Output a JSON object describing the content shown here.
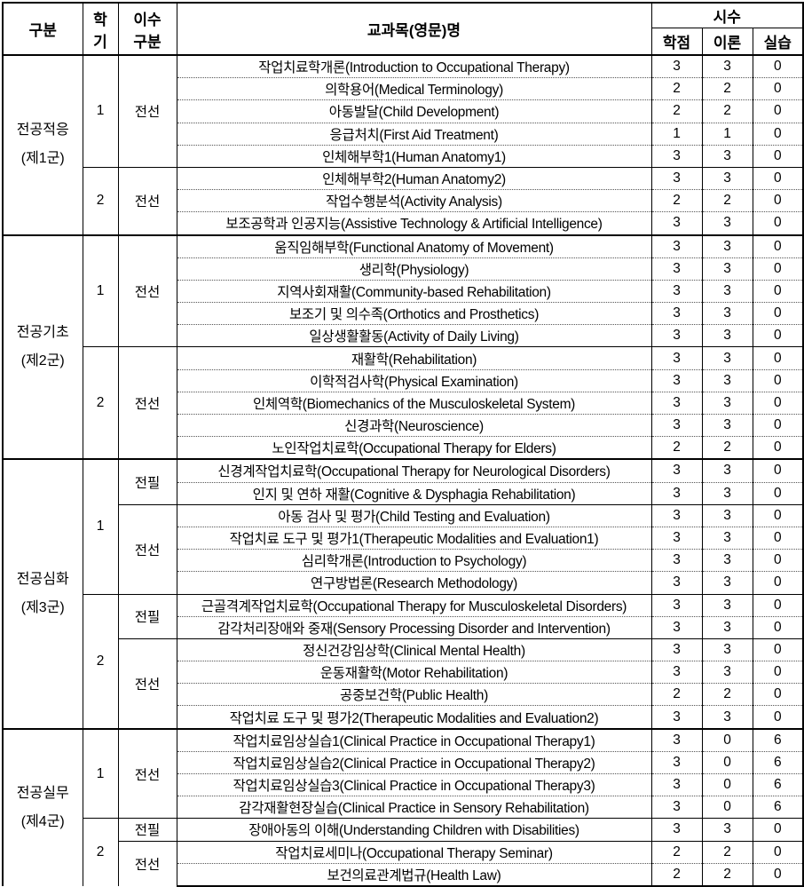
{
  "header": {
    "category": "구분",
    "semester": "학기",
    "type": "이수 구분",
    "type_line1": "이수",
    "type_line2": "구분",
    "semester_line1": "학",
    "semester_line2": "기",
    "course": "교과목(영문)명",
    "hours": "시수",
    "credit": "학점",
    "theory": "이론",
    "practice": "실습"
  },
  "groups": [
    {
      "name": "전공적응",
      "sub": "(제1군)",
      "semesters": [
        {
          "sem": "1",
          "types": [
            {
              "type": "전선",
              "courses": [
                {
                  "name": "작업치료학개론(Introduction to Occupational Therapy)",
                  "credit": "3",
                  "theory": "3",
                  "practice": "0"
                },
                {
                  "name": "의학용어(Medical Terminology)",
                  "credit": "2",
                  "theory": "2",
                  "practice": "0"
                },
                {
                  "name": "아동발달(Child Development)",
                  "credit": "2",
                  "theory": "2",
                  "practice": "0"
                },
                {
                  "name": "응급처치(First Aid Treatment)",
                  "credit": "1",
                  "theory": "1",
                  "practice": "0"
                },
                {
                  "name": "인체해부학1(Human Anatomy1)",
                  "credit": "3",
                  "theory": "3",
                  "practice": "0"
                }
              ]
            }
          ]
        },
        {
          "sem": "2",
          "types": [
            {
              "type": "전선",
              "courses": [
                {
                  "name": "인체해부학2(Human Anatomy2)",
                  "credit": "3",
                  "theory": "3",
                  "practice": "0"
                },
                {
                  "name": "작업수행분석(Activity Analysis)",
                  "credit": "2",
                  "theory": "2",
                  "practice": "0"
                },
                {
                  "name": "보조공학과 인공지능(Assistive Technology & Artificial Intelligence)",
                  "credit": "3",
                  "theory": "3",
                  "practice": "0"
                }
              ]
            }
          ]
        }
      ]
    },
    {
      "name": "전공기초",
      "sub": "(제2군)",
      "semesters": [
        {
          "sem": "1",
          "types": [
            {
              "type": "전선",
              "courses": [
                {
                  "name": "움직임해부학(Functional Anatomy of Movement)",
                  "credit": "3",
                  "theory": "3",
                  "practice": "0"
                },
                {
                  "name": "생리학(Physiology)",
                  "credit": "3",
                  "theory": "3",
                  "practice": "0"
                },
                {
                  "name": "지역사회재활(Community-based Rehabilitation)",
                  "credit": "3",
                  "theory": "3",
                  "practice": "0"
                },
                {
                  "name": "보조기 및 의수족(Orthotics and Prosthetics)",
                  "credit": "3",
                  "theory": "3",
                  "practice": "0"
                },
                {
                  "name": "일상생활활동(Activity of  Daily Living)",
                  "credit": "3",
                  "theory": "3",
                  "practice": "0"
                }
              ]
            }
          ]
        },
        {
          "sem": "2",
          "types": [
            {
              "type": "전선",
              "courses": [
                {
                  "name": "재활학(Rehabilitation)",
                  "credit": "3",
                  "theory": "3",
                  "practice": "0"
                },
                {
                  "name": "이학적검사학(Physical Examination)",
                  "credit": "3",
                  "theory": "3",
                  "practice": "0"
                },
                {
                  "name": "인체역학(Biomechanics of the Musculoskeletal System)",
                  "credit": "3",
                  "theory": "3",
                  "practice": "0"
                },
                {
                  "name": "신경과학(Neuroscience)",
                  "credit": "3",
                  "theory": "3",
                  "practice": "0"
                },
                {
                  "name": "노인작업치료학(Occupational Therapy for Elders)",
                  "credit": "2",
                  "theory": "2",
                  "practice": "0"
                }
              ]
            }
          ]
        }
      ]
    },
    {
      "name": "전공심화",
      "sub": "(제3군)",
      "semesters": [
        {
          "sem": "1",
          "types": [
            {
              "type": "전필",
              "courses": [
                {
                  "name": "신경계작업치료학(Occupational Therapy for Neurological Disorders)",
                  "credit": "3",
                  "theory": "3",
                  "practice": "0"
                },
                {
                  "name": "인지 및 연하 재활(Cognitive & Dysphagia Rehabilitation)",
                  "credit": "3",
                  "theory": "3",
                  "practice": "0"
                }
              ]
            },
            {
              "type": "전선",
              "courses": [
                {
                  "name": "아동 검사 및 평가(Child Testing and Evaluation)",
                  "credit": "3",
                  "theory": "3",
                  "practice": "0"
                },
                {
                  "name": "작업치료 도구 및 평가1(Therapeutic Modalities and Evaluation1)",
                  "credit": "3",
                  "theory": "3",
                  "practice": "0"
                },
                {
                  "name": "심리학개론(Introduction to Psychology)",
                  "credit": "3",
                  "theory": "3",
                  "practice": "0"
                },
                {
                  "name": "연구방법론(Research Methodology)",
                  "credit": "3",
                  "theory": "3",
                  "practice": "0"
                }
              ]
            }
          ]
        },
        {
          "sem": "2",
          "types": [
            {
              "type": "전필",
              "courses": [
                {
                  "name": "근골격계작업치료학(Occupational Therapy for Musculoskeletal Disorders)",
                  "credit": "3",
                  "theory": "3",
                  "practice": "0"
                },
                {
                  "name": "감각처리장애와 중재(Sensory Processing Disorder and Intervention)",
                  "credit": "3",
                  "theory": "3",
                  "practice": "0"
                }
              ]
            },
            {
              "type": "전선",
              "courses": [
                {
                  "name": "정신건강임상학(Clinical Mental Health)",
                  "credit": "3",
                  "theory": "3",
                  "practice": "0"
                },
                {
                  "name": "운동재활학(Motor Rehabilitation)",
                  "credit": "3",
                  "theory": "3",
                  "practice": "0"
                },
                {
                  "name": "공중보건학(Public Health)",
                  "credit": "2",
                  "theory": "2",
                  "practice": "0"
                },
                {
                  "name": "작업치료 도구 및 평가2(Therapeutic Modalities and Evaluation2)",
                  "credit": "3",
                  "theory": "3",
                  "practice": "0"
                }
              ]
            }
          ]
        }
      ]
    },
    {
      "name": "전공실무",
      "sub": "(제4군)",
      "semesters": [
        {
          "sem": "1",
          "types": [
            {
              "type": "전선",
              "courses": [
                {
                  "name": "작업치료임상실습1(Clinical  Practice in Occupational Therapy1)",
                  "credit": "3",
                  "theory": "0",
                  "practice": "6"
                },
                {
                  "name": "작업치료임상실습2(Clinical Practice in Occupational Therapy2)",
                  "credit": "3",
                  "theory": "0",
                  "practice": "6"
                },
                {
                  "name": "작업치료임상실습3(Clinical Practice in Occupational Therapy3)",
                  "credit": "3",
                  "theory": "0",
                  "practice": "6"
                },
                {
                  "name": "감각재활현장실습(Clinical Practice in Sensory Rehabilitation)",
                  "credit": "3",
                  "theory": "0",
                  "practice": "6"
                }
              ]
            }
          ]
        },
        {
          "sem": "2",
          "types": [
            {
              "type": "전필",
              "courses": [
                {
                  "name": "장애아동의 이해(Understanding Children with Disabilities)",
                  "credit": "3",
                  "theory": "3",
                  "practice": "0"
                }
              ]
            },
            {
              "type": "전선",
              "courses": [
                {
                  "name": "작업치료세미나(Occupational Therapy Seminar)",
                  "credit": "2",
                  "theory": "2",
                  "practice": "0"
                },
                {
                  "name": "보건의료관계법규(Health Law)",
                  "credit": "2",
                  "theory": "2",
                  "practice": "0"
                }
              ]
            }
          ]
        }
      ]
    }
  ]
}
